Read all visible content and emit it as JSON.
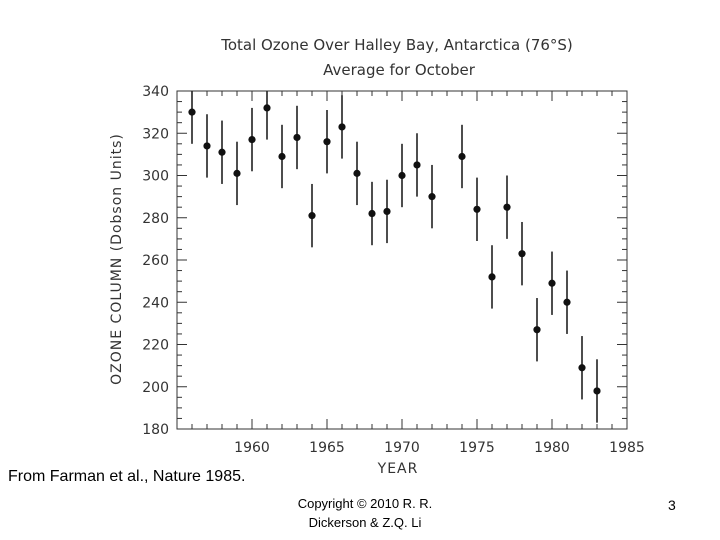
{
  "chart_data": {
    "type": "scatter",
    "title": "Total Ozone Over Halley Bay, Antarctica (76°S)",
    "subtitle": "Average for October",
    "xlabel": "YEAR",
    "ylabel": "OZONE COLUMN (Dobson Units)",
    "xlim": [
      1955,
      1985
    ],
    "ylim": [
      180,
      340
    ],
    "xticks": [
      1960,
      1965,
      1970,
      1975,
      1980,
      1985
    ],
    "yticks": [
      180,
      200,
      220,
      240,
      260,
      280,
      300,
      320,
      340
    ],
    "grid": false,
    "error_bars": "vertical",
    "points": [
      {
        "x": 1956,
        "y": 330,
        "low": 315,
        "high": 345
      },
      {
        "x": 1957,
        "y": 314,
        "low": 299,
        "high": 329
      },
      {
        "x": 1958,
        "y": 311,
        "low": 296,
        "high": 326
      },
      {
        "x": 1959,
        "y": 301,
        "low": 286,
        "high": 316
      },
      {
        "x": 1960,
        "y": 317,
        "low": 302,
        "high": 332
      },
      {
        "x": 1961,
        "y": 332,
        "low": 317,
        "high": 347
      },
      {
        "x": 1962,
        "y": 309,
        "low": 294,
        "high": 324
      },
      {
        "x": 1963,
        "y": 318,
        "low": 303,
        "high": 333
      },
      {
        "x": 1964,
        "y": 281,
        "low": 266,
        "high": 296
      },
      {
        "x": 1965,
        "y": 316,
        "low": 301,
        "high": 331
      },
      {
        "x": 1966,
        "y": 323,
        "low": 308,
        "high": 338
      },
      {
        "x": 1967,
        "y": 301,
        "low": 286,
        "high": 316
      },
      {
        "x": 1968,
        "y": 282,
        "low": 267,
        "high": 297
      },
      {
        "x": 1969,
        "y": 283,
        "low": 268,
        "high": 298
      },
      {
        "x": 1970,
        "y": 300,
        "low": 285,
        "high": 315
      },
      {
        "x": 1971,
        "y": 305,
        "low": 290,
        "high": 320
      },
      {
        "x": 1972,
        "y": 290,
        "low": 275,
        "high": 305
      },
      {
        "x": 1974,
        "y": 309,
        "low": 294,
        "high": 324
      },
      {
        "x": 1975,
        "y": 284,
        "low": 269,
        "high": 299
      },
      {
        "x": 1976,
        "y": 252,
        "low": 237,
        "high": 267
      },
      {
        "x": 1977,
        "y": 285,
        "low": 270,
        "high": 300
      },
      {
        "x": 1978,
        "y": 263,
        "low": 248,
        "high": 278
      },
      {
        "x": 1979,
        "y": 227,
        "low": 212,
        "high": 242
      },
      {
        "x": 1980,
        "y": 249,
        "low": 234,
        "high": 264
      },
      {
        "x": 1981,
        "y": 240,
        "low": 225,
        "high": 255
      },
      {
        "x": 1982,
        "y": 209,
        "low": 194,
        "high": 224
      },
      {
        "x": 1983,
        "y": 198,
        "low": 183,
        "high": 213
      }
    ]
  },
  "caption": {
    "source": "From Farman et al., Nature 1985.",
    "copyright_line1": "Copyright © 2010 R. R.",
    "copyright_line2": "Dickerson & Z.Q. Li",
    "slide_number": "3"
  }
}
